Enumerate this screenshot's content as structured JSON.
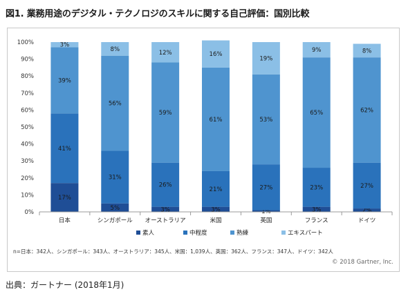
{
  "title": "図1. 業務用途のデジタル・テクノロジのスキルに関する自己評価：国別比較",
  "chart_data": {
    "type": "bar",
    "stacked": true,
    "categories": [
      "日本",
      "シンガポール",
      "オーストラリア",
      "米国",
      "英国",
      "フランス",
      "ドイツ"
    ],
    "series": [
      {
        "name": "素人",
        "color": "#1f4e96",
        "values": [
          17,
          5,
          3,
          3,
          1,
          3,
          2
        ]
      },
      {
        "name": "中程度",
        "color": "#2a72bb",
        "values": [
          41,
          31,
          26,
          21,
          27,
          23,
          27
        ]
      },
      {
        "name": "熟練",
        "color": "#4f94cf",
        "values": [
          39,
          56,
          59,
          61,
          53,
          65,
          62
        ]
      },
      {
        "name": "エキスパート",
        "color": "#8bbfe6",
        "values": [
          3,
          8,
          12,
          16,
          19,
          9,
          8
        ]
      }
    ],
    "yticks": [
      "0%",
      "10%",
      "20%",
      "30%",
      "40%",
      "50%",
      "60%",
      "70%",
      "80%",
      "90%",
      "100%"
    ],
    "ylim": [
      0,
      100
    ],
    "legend_position": "bottom"
  },
  "sample_note": "n=日本：342人、シンガポール：343人、オーストラリア：345人、米国：1,039人、英国：362人、フランス：347人、ドイツ：342人",
  "copyright": "© 2018 Gartner, Inc.",
  "source": "出典：ガートナー (2018年1月)"
}
